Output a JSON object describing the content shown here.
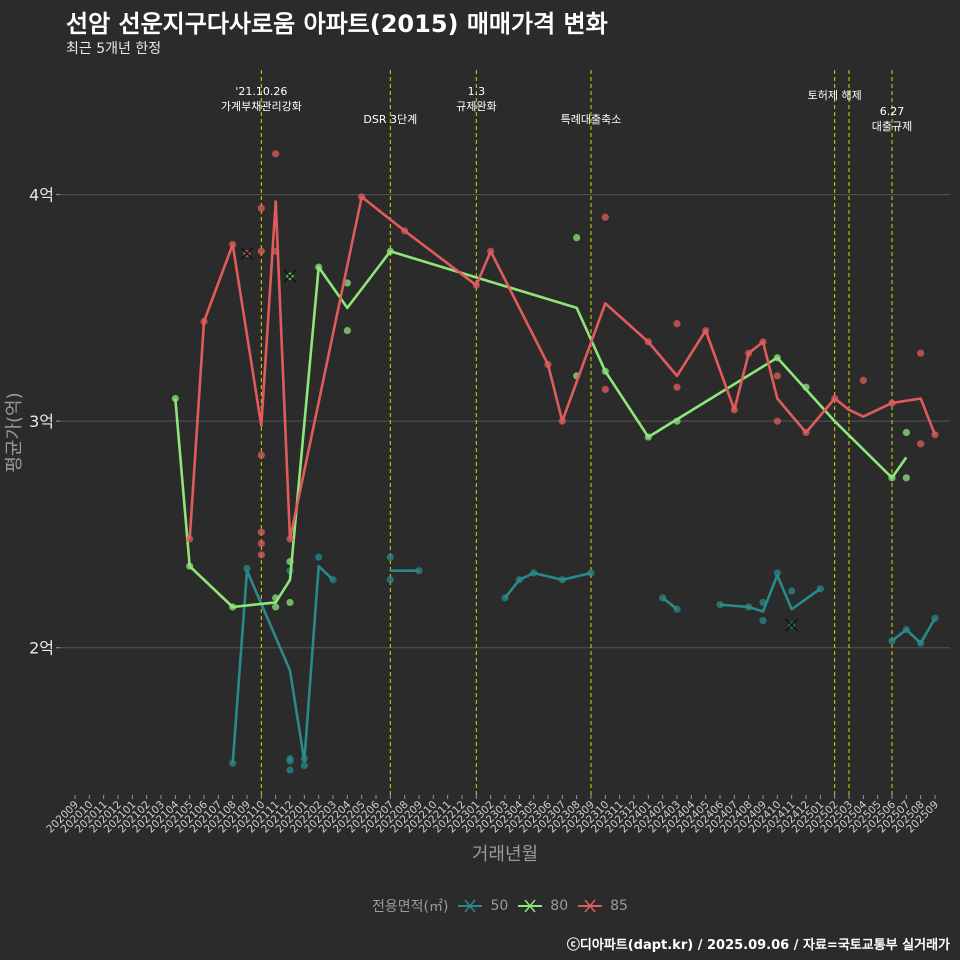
{
  "title": "선암 선운지구다사로움 아파트(2015) 매매가격 변화",
  "subtitle": "최근 5개년 한정",
  "caption": "ⓒ디아파트(dapt.kr) / 2025.09.06 / 자료=국토교통부 실거래가",
  "colors": {
    "background": "#2b2b2b",
    "grid": "#555555",
    "event_line": "#d4d400",
    "s50": "#2a8a8a",
    "s80": "#8ee67a",
    "s85": "#e05c5c",
    "text": "#ffffff",
    "axis_text": "#9a9a9a"
  },
  "legend": {
    "title": "전용면적(㎡)",
    "items": [
      "50",
      "80",
      "85"
    ]
  },
  "chart_data": {
    "type": "line",
    "xlabel": "거래년월",
    "ylabel": "평균가(억)",
    "x_categories": [
      "202009",
      "202010",
      "202011",
      "202012",
      "202101",
      "202102",
      "202103",
      "202104",
      "202105",
      "202106",
      "202107",
      "202108",
      "202109",
      "202110",
      "202111",
      "202112",
      "202201",
      "202202",
      "202203",
      "202204",
      "202205",
      "202206",
      "202207",
      "202208",
      "202209",
      "202210",
      "202211",
      "202212",
      "202301",
      "202302",
      "202303",
      "202304",
      "202305",
      "202306",
      "202307",
      "202308",
      "202309",
      "202310",
      "202311",
      "202312",
      "202401",
      "202402",
      "202403",
      "202404",
      "202405",
      "202406",
      "202407",
      "202408",
      "202409",
      "202410",
      "202411",
      "202412",
      "202501",
      "202502",
      "202503",
      "202504",
      "202505",
      "202506",
      "202507",
      "202508",
      "202509"
    ],
    "y_ticks": [
      {
        "value": 2,
        "label": "2억"
      },
      {
        "value": 3,
        "label": "3억"
      },
      {
        "value": 4,
        "label": "4억"
      }
    ],
    "ylim": [
      1.35,
      4.55
    ],
    "grid": true,
    "legend_position": "bottom",
    "events": [
      {
        "month": "202110",
        "lines": [
          "'21.10.26",
          "가계부채관리강화"
        ],
        "row": 0
      },
      {
        "month": "202207",
        "lines": [
          "DSR 3단계"
        ],
        "row": 1
      },
      {
        "month": "202301",
        "lines": [
          "1.3",
          "규제완화"
        ],
        "row": 0
      },
      {
        "month": "202309",
        "lines": [
          "특례대출축소"
        ],
        "row": 1
      },
      {
        "month": "202502",
        "lines": [
          "토허제 해제"
        ],
        "row": 0
      },
      {
        "month": "202503",
        "lines": [],
        "row": 0
      },
      {
        "month": "202506",
        "lines": [
          "6.27",
          "대출규제"
        ],
        "row": 2
      }
    ],
    "series": [
      {
        "name": "50",
        "color": "#2a8a8a",
        "lines": [
          [
            [
              "202108",
              1.49
            ],
            [
              "202109",
              2.34
            ],
            [
              "202112",
              1.9
            ],
            [
              "202201",
              1.5
            ],
            [
              "202202",
              2.36
            ],
            [
              "202203",
              2.3
            ]
          ],
          [
            [
              "202207",
              2.34
            ],
            [
              "202209",
              2.34
            ]
          ],
          [
            [
              "202303",
              2.22
            ],
            [
              "202304",
              2.3
            ],
            [
              "202305",
              2.33
            ],
            [
              "202307",
              2.3
            ],
            [
              "202309",
              2.33
            ]
          ],
          [
            [
              "202402",
              2.22
            ],
            [
              "202403",
              2.17
            ]
          ],
          [
            [
              "202406",
              2.19
            ],
            [
              "202408",
              2.18
            ],
            [
              "202409",
              2.16
            ],
            [
              "202410",
              2.32
            ],
            [
              "202411",
              2.17
            ],
            [
              "202501",
              2.26
            ]
          ],
          [
            [
              "202506",
              2.03
            ],
            [
              "202507",
              2.08
            ],
            [
              "202508",
              2.02
            ],
            [
              "202509",
              2.13
            ]
          ]
        ],
        "points": [
          [
            "202108",
            1.49
          ],
          [
            "202109",
            2.35
          ],
          [
            "202112",
            1.46
          ],
          [
            "202112",
            1.5
          ],
          [
            "202112",
            1.51
          ],
          [
            "202112",
            2.34
          ],
          [
            "202201",
            1.48
          ],
          [
            "202201",
            1.51
          ],
          [
            "202202",
            2.4
          ],
          [
            "202203",
            2.3
          ],
          [
            "202207",
            2.4
          ],
          [
            "202207",
            2.3
          ],
          [
            "202209",
            2.34
          ],
          [
            "202303",
            2.22
          ],
          [
            "202304",
            2.3
          ],
          [
            "202305",
            2.33
          ],
          [
            "202307",
            2.3
          ],
          [
            "202309",
            2.33
          ],
          [
            "202402",
            2.22
          ],
          [
            "202403",
            2.17
          ],
          [
            "202406",
            2.19
          ],
          [
            "202408",
            2.18
          ],
          [
            "202409",
            2.12
          ],
          [
            "202409",
            2.2
          ],
          [
            "202410",
            2.33
          ],
          [
            "202411",
            2.25
          ],
          [
            "202501",
            2.26
          ],
          [
            "202506",
            2.03
          ],
          [
            "202507",
            2.08
          ],
          [
            "202508",
            2.02
          ],
          [
            "202509",
            2.13
          ]
        ],
        "cancelled": [
          [
            "202411",
            2.1
          ]
        ]
      },
      {
        "name": "80",
        "color": "#8ee67a",
        "lines": [
          [
            [
              "202104",
              3.1
            ],
            [
              "202105",
              2.36
            ],
            [
              "202108",
              2.18
            ],
            [
              "202111",
              2.2
            ],
            [
              "202112",
              2.3
            ],
            [
              "202202",
              3.68
            ],
            [
              "202204",
              3.5
            ],
            [
              "202207",
              3.75
            ],
            [
              "202308",
              3.5
            ],
            [
              "202310",
              3.22
            ],
            [
              "202401",
              2.93
            ],
            [
              "202410",
              3.28
            ],
            [
              "202502",
              3.0
            ],
            [
              "202506",
              2.75
            ],
            [
              "202507",
              2.84
            ]
          ]
        ],
        "points": [
          [
            "202104",
            3.1
          ],
          [
            "202105",
            2.36
          ],
          [
            "202108",
            2.18
          ],
          [
            "202111",
            2.22
          ],
          [
            "202111",
            2.18
          ],
          [
            "202112",
            2.2
          ],
          [
            "202112",
            2.38
          ],
          [
            "202202",
            3.68
          ],
          [
            "202204",
            3.61
          ],
          [
            "202204",
            3.4
          ],
          [
            "202207",
            3.75
          ],
          [
            "202308",
            3.81
          ],
          [
            "202308",
            3.2
          ],
          [
            "202310",
            3.22
          ],
          [
            "202401",
            2.93
          ],
          [
            "202403",
            3.0
          ],
          [
            "202410",
            3.28
          ],
          [
            "202412",
            3.15
          ],
          [
            "202506",
            2.75
          ],
          [
            "202507",
            2.95
          ],
          [
            "202507",
            2.75
          ]
        ],
        "cancelled": [
          [
            "202112",
            3.64
          ]
        ]
      },
      {
        "name": "85",
        "color": "#e05c5c",
        "lines": [
          [
            [
              "202105",
              2.48
            ],
            [
              "202106",
              3.44
            ],
            [
              "202108",
              3.78
            ],
            [
              "202110",
              2.98
            ],
            [
              "202111",
              3.97
            ],
            [
              "202112",
              2.48
            ],
            [
              "202205",
              3.99
            ],
            [
              "202208",
              3.84
            ],
            [
              "202301",
              3.6
            ],
            [
              "202302",
              3.75
            ],
            [
              "202306",
              3.25
            ],
            [
              "202307",
              3.0
            ],
            [
              "202310",
              3.52
            ],
            [
              "202401",
              3.35
            ],
            [
              "202403",
              3.2
            ],
            [
              "202405",
              3.4
            ],
            [
              "202407",
              3.05
            ],
            [
              "202408",
              3.3
            ],
            [
              "202409",
              3.35
            ],
            [
              "202410",
              3.1
            ],
            [
              "202412",
              2.95
            ],
            [
              "202502",
              3.1
            ],
            [
              "202503",
              3.05
            ],
            [
              "202504",
              3.02
            ],
            [
              "202506",
              3.08
            ],
            [
              "202508",
              3.1
            ],
            [
              "202509",
              2.94
            ]
          ]
        ],
        "points": [
          [
            "202105",
            2.48
          ],
          [
            "202106",
            3.44
          ],
          [
            "202108",
            3.78
          ],
          [
            "202110",
            3.94
          ],
          [
            "202110",
            3.75
          ],
          [
            "202110",
            2.85
          ],
          [
            "202110",
            2.51
          ],
          [
            "202110",
            2.46
          ],
          [
            "202110",
            2.41
          ],
          [
            "202111",
            4.18
          ],
          [
            "202111",
            3.75
          ],
          [
            "202112",
            2.48
          ],
          [
            "202205",
            3.99
          ],
          [
            "202208",
            3.84
          ],
          [
            "202301",
            3.6
          ],
          [
            "202302",
            3.75
          ],
          [
            "202306",
            3.25
          ],
          [
            "202307",
            3.0
          ],
          [
            "202310",
            3.9
          ],
          [
            "202310",
            3.14
          ],
          [
            "202401",
            3.35
          ],
          [
            "202403",
            3.43
          ],
          [
            "202403",
            3.15
          ],
          [
            "202405",
            3.4
          ],
          [
            "202407",
            3.05
          ],
          [
            "202408",
            3.3
          ],
          [
            "202409",
            3.35
          ],
          [
            "202410",
            3.2
          ],
          [
            "202410",
            3.0
          ],
          [
            "202412",
            2.95
          ],
          [
            "202502",
            3.1
          ],
          [
            "202504",
            3.18
          ],
          [
            "202506",
            3.08
          ],
          [
            "202508",
            3.3
          ],
          [
            "202508",
            2.9
          ],
          [
            "202509",
            2.94
          ]
        ],
        "cancelled": [
          [
            "202109",
            3.74
          ]
        ]
      }
    ]
  }
}
